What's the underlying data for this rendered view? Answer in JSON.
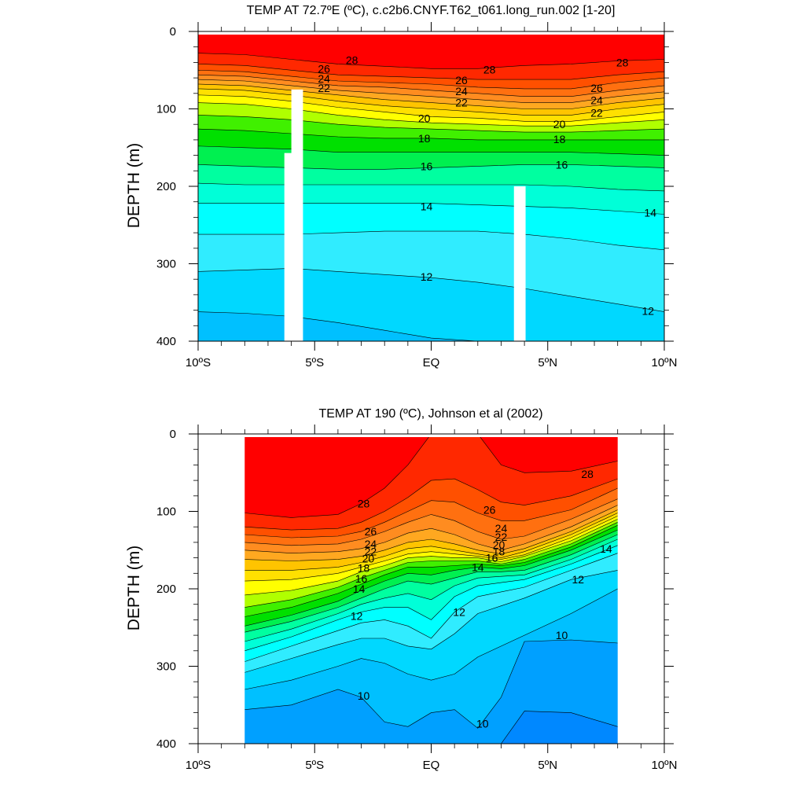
{
  "palette": [
    "#0048ff",
    "#0060ff",
    "#0088ff",
    "#00a0ff",
    "#00c0ff",
    "#00d8ff",
    "#30ecff",
    "#00ffff",
    "#00ffd8",
    "#00ffa0",
    "#00f050",
    "#00e000",
    "#40f000",
    "#b0ff00",
    "#ffff00",
    "#ffe000",
    "#ffc400",
    "#ffa820",
    "#ff8c20",
    "#ff7010",
    "#ff5000",
    "#ff2800",
    "#ff0000",
    "#e00000"
  ],
  "chart_data": [
    {
      "type": "contour",
      "title": "TEMP AT  72.7ºE (ºC), c.c2b6.CNYF.T62_t061.long_run.002 [1-20]",
      "ylabel": "DEPTH (m)",
      "xlabel": "",
      "xlim": [
        -10,
        10
      ],
      "ylim": [
        400,
        0
      ],
      "y_direction": "down",
      "x_ticks": [
        -10,
        -5,
        0,
        5,
        10
      ],
      "x_tick_labels": [
        "10ºS",
        "5ºS",
        "EQ",
        "5ºN",
        "10ºN"
      ],
      "y_ticks": [
        0,
        100,
        200,
        300,
        400
      ],
      "y_tick_labels": [
        "0",
        "100",
        "200",
        "300",
        "400"
      ],
      "data_x_range": [
        -10,
        10
      ],
      "x": [
        -10,
        -8,
        -6,
        -4,
        -2,
        0,
        2,
        4,
        6,
        8,
        10
      ],
      "isotherms": [
        {
          "t": 29,
          "depth": [
            0,
            0,
            0,
            0,
            0,
            0,
            0,
            0,
            0,
            0,
            0
          ]
        },
        {
          "t": 28,
          "depth": [
            28,
            30,
            36,
            42,
            45,
            48,
            48,
            44,
            42,
            38,
            36
          ]
        },
        {
          "t": 27,
          "depth": [
            42,
            44,
            50,
            56,
            58,
            60,
            62,
            62,
            62,
            56,
            52
          ]
        },
        {
          "t": 26,
          "depth": [
            50,
            52,
            58,
            64,
            66,
            68,
            72,
            74,
            74,
            66,
            60
          ]
        },
        {
          "t": 25,
          "depth": [
            56,
            58,
            64,
            70,
            72,
            76,
            80,
            84,
            84,
            76,
            70
          ]
        },
        {
          "t": 24,
          "depth": [
            62,
            64,
            70,
            76,
            80,
            84,
            88,
            92,
            92,
            84,
            78
          ]
        },
        {
          "t": 23,
          "depth": [
            68,
            70,
            76,
            82,
            88,
            92,
            96,
            100,
            100,
            92,
            86
          ]
        },
        {
          "t": 22,
          "depth": [
            74,
            76,
            82,
            90,
            96,
            100,
            104,
            108,
            108,
            100,
            94
          ]
        },
        {
          "t": 21,
          "depth": [
            82,
            84,
            90,
            98,
            104,
            110,
            112,
            116,
            116,
            110,
            104
          ]
        },
        {
          "t": 20,
          "depth": [
            92,
            94,
            100,
            108,
            114,
            118,
            120,
            122,
            122,
            118,
            114
          ]
        },
        {
          "t": 19,
          "depth": [
            108,
            110,
            114,
            120,
            124,
            126,
            128,
            130,
            130,
            128,
            126
          ]
        },
        {
          "t": 18,
          "depth": [
            126,
            128,
            132,
            136,
            138,
            138,
            140,
            140,
            140,
            140,
            140
          ]
        },
        {
          "t": 17,
          "depth": [
            148,
            150,
            152,
            156,
            156,
            156,
            156,
            156,
            156,
            158,
            160
          ]
        },
        {
          "t": 16,
          "depth": [
            172,
            174,
            176,
            178,
            178,
            176,
            174,
            172,
            172,
            174,
            176
          ]
        },
        {
          "t": 15,
          "depth": [
            196,
            198,
            198,
            198,
            198,
            198,
            198,
            198,
            200,
            204,
            206
          ]
        },
        {
          "t": 14,
          "depth": [
            222,
            222,
            222,
            222,
            222,
            222,
            224,
            226,
            228,
            232,
            236
          ]
        },
        {
          "t": 13,
          "depth": [
            262,
            262,
            262,
            260,
            258,
            258,
            258,
            262,
            268,
            276,
            282
          ]
        },
        {
          "t": 12,
          "depth": [
            310,
            308,
            306,
            310,
            314,
            318,
            324,
            332,
            342,
            352,
            362
          ]
        },
        {
          "t": 11,
          "depth": [
            362,
            364,
            368,
            376,
            386,
            396,
            410,
            420,
            428,
            434,
            440
          ]
        }
      ],
      "labels": [
        {
          "text": "28",
          "x": -3.4,
          "depth": 37
        },
        {
          "text": "28",
          "x": 2.5,
          "depth": 49
        },
        {
          "text": "28",
          "x": 8.2,
          "depth": 40
        },
        {
          "text": "26",
          "x": -4.6,
          "depth": 48
        },
        {
          "text": "24",
          "x": -4.6,
          "depth": 61
        },
        {
          "text": "22",
          "x": -4.6,
          "depth": 73
        },
        {
          "text": "26",
          "x": 1.3,
          "depth": 63
        },
        {
          "text": "24",
          "x": 1.3,
          "depth": 77
        },
        {
          "text": "22",
          "x": 1.3,
          "depth": 92
        },
        {
          "text": "26",
          "x": 7.1,
          "depth": 73
        },
        {
          "text": "24",
          "x": 7.1,
          "depth": 89
        },
        {
          "text": "22",
          "x": 7.1,
          "depth": 105
        },
        {
          "text": "20",
          "x": -0.3,
          "depth": 112
        },
        {
          "text": "20",
          "x": 5.5,
          "depth": 120
        },
        {
          "text": "18",
          "x": -0.3,
          "depth": 138
        },
        {
          "text": "18",
          "x": 5.5,
          "depth": 139
        },
        {
          "text": "16",
          "x": -0.2,
          "depth": 174
        },
        {
          "text": "16",
          "x": 5.6,
          "depth": 172
        },
        {
          "text": "14",
          "x": -0.2,
          "depth": 226
        },
        {
          "text": "14",
          "x": 9.4,
          "depth": 234
        },
        {
          "text": "12",
          "x": -0.2,
          "depth": 317
        },
        {
          "text": "12",
          "x": 9.3,
          "depth": 361
        }
      ],
      "missing_columns": [
        {
          "x0": -6.3,
          "x1": -5.6,
          "depth_top": 157
        },
        {
          "x0": -6.0,
          "x1": -5.5,
          "depth_top": 75
        },
        {
          "x0": 3.55,
          "x1": 4.05,
          "depth_top": 200
        }
      ]
    },
    {
      "type": "contour",
      "title": "TEMP AT 190 (ºC), Johnson et al (2002)",
      "ylabel": "DEPTH (m)",
      "xlabel": "",
      "xlim": [
        -10,
        10
      ],
      "ylim": [
        400,
        0
      ],
      "y_direction": "down",
      "x_ticks": [
        -10,
        -5,
        0,
        5,
        10
      ],
      "x_tick_labels": [
        "10ºS",
        "5ºS",
        "EQ",
        "5ºN",
        "10ºN"
      ],
      "y_ticks": [
        0,
        100,
        200,
        300,
        400
      ],
      "y_tick_labels": [
        "0",
        "100",
        "200",
        "300",
        "400"
      ],
      "data_x_range": [
        -8,
        8
      ],
      "x": [
        -8,
        -6,
        -4,
        -3,
        -2,
        -1,
        0,
        1,
        2,
        3,
        4,
        6,
        8
      ],
      "isotherms": [
        {
          "t": 29,
          "depth": [
            0,
            0,
            0,
            0,
            0,
            0,
            0,
            0,
            0,
            0,
            0,
            0,
            0
          ]
        },
        {
          "t": 28,
          "depth": [
            102,
            108,
            104,
            90,
            70,
            40,
            0,
            0,
            0,
            40,
            50,
            48,
            35
          ]
        },
        {
          "t": 27,
          "depth": [
            120,
            124,
            122,
            114,
            100,
            82,
            60,
            58,
            72,
            88,
            92,
            80,
            58
          ]
        },
        {
          "t": 26,
          "depth": [
            130,
            134,
            132,
            126,
            114,
            100,
            86,
            88,
            102,
            112,
            112,
            98,
            70
          ]
        },
        {
          "t": 25,
          "depth": [
            140,
            144,
            142,
            136,
            126,
            114,
            104,
            112,
            126,
            136,
            132,
            110,
            84
          ]
        },
        {
          "t": 24,
          "depth": [
            150,
            154,
            152,
            148,
            140,
            128,
            122,
            130,
            142,
            150,
            142,
            120,
            92
          ]
        },
        {
          "t": 23,
          "depth": [
            162,
            164,
            162,
            158,
            150,
            140,
            136,
            142,
            150,
            155,
            148,
            126,
            98
          ]
        },
        {
          "t": 22,
          "depth": [
            176,
            176,
            172,
            166,
            158,
            148,
            145,
            150,
            155,
            160,
            152,
            130,
            102
          ]
        },
        {
          "t": 21,
          "depth": [
            190,
            188,
            180,
            172,
            164,
            155,
            152,
            155,
            158,
            162,
            156,
            134,
            106
          ]
        },
        {
          "t": 20,
          "depth": [
            208,
            202,
            190,
            178,
            170,
            160,
            158,
            160,
            160,
            165,
            158,
            138,
            110
          ]
        },
        {
          "t": 19,
          "depth": [
            224,
            214,
            198,
            186,
            176,
            166,
            164,
            164,
            164,
            168,
            162,
            142,
            114
          ]
        },
        {
          "t": 18,
          "depth": [
            236,
            224,
            206,
            194,
            182,
            172,
            172,
            170,
            168,
            170,
            166,
            146,
            118
          ]
        },
        {
          "t": 17,
          "depth": [
            248,
            234,
            216,
            202,
            190,
            180,
            182,
            176,
            172,
            174,
            170,
            150,
            124
          ]
        },
        {
          "t": 16,
          "depth": [
            256,
            242,
            224,
            212,
            200,
            190,
            194,
            186,
            178,
            178,
            176,
            156,
            130
          ]
        },
        {
          "t": 15,
          "depth": [
            268,
            252,
            232,
            220,
            212,
            206,
            214,
            196,
            186,
            184,
            182,
            162,
            136
          ]
        },
        {
          "t": 14,
          "depth": [
            280,
            262,
            240,
            230,
            224,
            224,
            240,
            210,
            196,
            192,
            188,
            168,
            144
          ]
        },
        {
          "t": 13,
          "depth": [
            294,
            274,
            254,
            244,
            240,
            248,
            264,
            230,
            210,
            204,
            198,
            176,
            154
          ]
        },
        {
          "t": 12,
          "depth": [
            308,
            290,
            272,
            264,
            264,
            274,
            278,
            258,
            232,
            222,
            212,
            188,
            176
          ]
        },
        {
          "t": 11,
          "depth": [
            330,
            318,
            300,
            290,
            296,
            310,
            318,
            310,
            288,
            274,
            260,
            232,
            200
          ]
        },
        {
          "t": 10,
          "depth": [
            356,
            350,
            330,
            340,
            372,
            378,
            360,
            356,
            380,
            340,
            268,
            266,
            270
          ]
        },
        {
          "t": 9,
          "depth": [
            450,
            450,
            450,
            450,
            450,
            450,
            450,
            450,
            450,
            400,
            358,
            360,
            378
          ]
        }
      ],
      "labels": [
        {
          "text": "28",
          "x": -2.9,
          "depth": 90
        },
        {
          "text": "26",
          "x": 2.5,
          "depth": 98
        },
        {
          "text": "28",
          "x": 6.7,
          "depth": 52
        },
        {
          "text": "26",
          "x": -2.6,
          "depth": 126
        },
        {
          "text": "24",
          "x": -2.6,
          "depth": 142
        },
        {
          "text": "22",
          "x": -2.6,
          "depth": 152
        },
        {
          "text": "20",
          "x": -2.7,
          "depth": 161
        },
        {
          "text": "18",
          "x": -2.9,
          "depth": 173
        },
        {
          "text": "16",
          "x": -3.0,
          "depth": 187
        },
        {
          "text": "14",
          "x": -3.1,
          "depth": 200
        },
        {
          "text": "24",
          "x": 3.0,
          "depth": 122
        },
        {
          "text": "22",
          "x": 3.0,
          "depth": 133
        },
        {
          "text": "20",
          "x": 2.9,
          "depth": 143
        },
        {
          "text": "18",
          "x": 2.9,
          "depth": 152
        },
        {
          "text": "16",
          "x": 2.6,
          "depth": 160
        },
        {
          "text": "14",
          "x": 2.0,
          "depth": 172
        },
        {
          "text": "12",
          "x": -3.2,
          "depth": 235
        },
        {
          "text": "12",
          "x": 1.2,
          "depth": 230
        },
        {
          "text": "12",
          "x": 6.3,
          "depth": 188
        },
        {
          "text": "14",
          "x": 7.5,
          "depth": 148
        },
        {
          "text": "10",
          "x": 5.6,
          "depth": 260
        },
        {
          "text": "10",
          "x": -2.9,
          "depth": 338
        },
        {
          "text": "10",
          "x": 2.2,
          "depth": 374
        }
      ],
      "missing_columns": []
    }
  ]
}
